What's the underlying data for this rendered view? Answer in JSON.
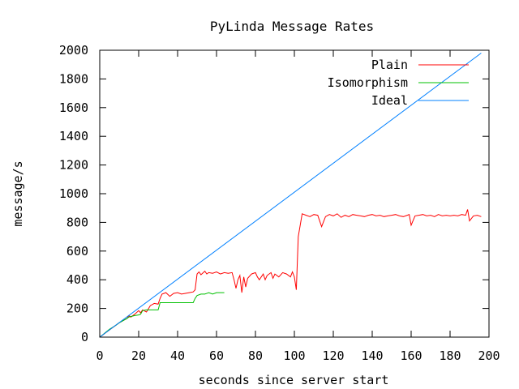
{
  "chart_data": {
    "type": "line",
    "title": "PyLinda Message Rates",
    "xlabel": "seconds since server start",
    "ylabel": "message/s",
    "xlim": [
      0,
      200
    ],
    "ylim": [
      0,
      2000
    ],
    "xticks": [
      0,
      20,
      40,
      60,
      80,
      100,
      120,
      140,
      160,
      180,
      200
    ],
    "yticks": [
      0,
      200,
      400,
      600,
      800,
      1000,
      1200,
      1400,
      1600,
      1800,
      2000
    ],
    "grid": false,
    "legend_position": "top-right",
    "series": [
      {
        "name": "Plain",
        "color": "#ff0000",
        "x": [
          0,
          2,
          4,
          6,
          8,
          10,
          12,
          14,
          15,
          16,
          18,
          20,
          21,
          22,
          24,
          26,
          28,
          30,
          31,
          32,
          34,
          36,
          38,
          40,
          42,
          44,
          46,
          48,
          49,
          50,
          51,
          52,
          54,
          55,
          56,
          58,
          60,
          62,
          64,
          66,
          68,
          69,
          70,
          71,
          72,
          73,
          74,
          75,
          76,
          78,
          80,
          81,
          82,
          84,
          85,
          86,
          88,
          89,
          90,
          92,
          94,
          96,
          98,
          99,
          100,
          101,
          102,
          104,
          106,
          108,
          110,
          112,
          114,
          116,
          118,
          120,
          122,
          124,
          126,
          128,
          130,
          132,
          134,
          136,
          138,
          140,
          142,
          144,
          146,
          148,
          150,
          152,
          154,
          156,
          158,
          159,
          160,
          162,
          164,
          166,
          168,
          170,
          172,
          174,
          176,
          178,
          180,
          182,
          184,
          186,
          188,
          189,
          190,
          192,
          194,
          196
        ],
        "y": [
          0,
          20,
          40,
          60,
          80,
          100,
          115,
          130,
          150,
          140,
          160,
          185,
          170,
          190,
          175,
          220,
          235,
          230,
          270,
          300,
          310,
          285,
          305,
          310,
          300,
          305,
          310,
          315,
          330,
          440,
          455,
          435,
          460,
          440,
          450,
          445,
          455,
          440,
          450,
          445,
          450,
          400,
          340,
          400,
          430,
          310,
          420,
          350,
          410,
          440,
          450,
          420,
          400,
          440,
          400,
          430,
          450,
          410,
          440,
          420,
          450,
          440,
          420,
          455,
          420,
          330,
          700,
          860,
          850,
          840,
          855,
          850,
          770,
          840,
          855,
          845,
          860,
          835,
          850,
          840,
          855,
          850,
          845,
          840,
          850,
          855,
          845,
          850,
          840,
          845,
          850,
          855,
          845,
          840,
          850,
          855,
          780,
          845,
          850,
          855,
          845,
          850,
          840,
          855,
          845,
          850,
          845,
          850,
          845,
          855,
          850,
          890,
          810,
          845,
          850,
          840
        ]
      },
      {
        "name": "Isomorphism",
        "color": "#00c000",
        "x": [
          0,
          5,
          8,
          10,
          14,
          15,
          18,
          20,
          21,
          22,
          24,
          28,
          30,
          31,
          32,
          34,
          36,
          38,
          40,
          44,
          48,
          49,
          50,
          52,
          54,
          56,
          58,
          60,
          62,
          64
        ],
        "y": [
          0,
          55,
          80,
          100,
          130,
          140,
          150,
          155,
          160,
          185,
          190,
          190,
          190,
          240,
          240,
          240,
          240,
          240,
          240,
          240,
          240,
          270,
          290,
          300,
          300,
          310,
          300,
          310,
          310,
          310
        ]
      },
      {
        "name": "Ideal",
        "color": "#0080ff",
        "x": [
          0,
          196
        ],
        "y": [
          0,
          1980
        ]
      }
    ]
  }
}
